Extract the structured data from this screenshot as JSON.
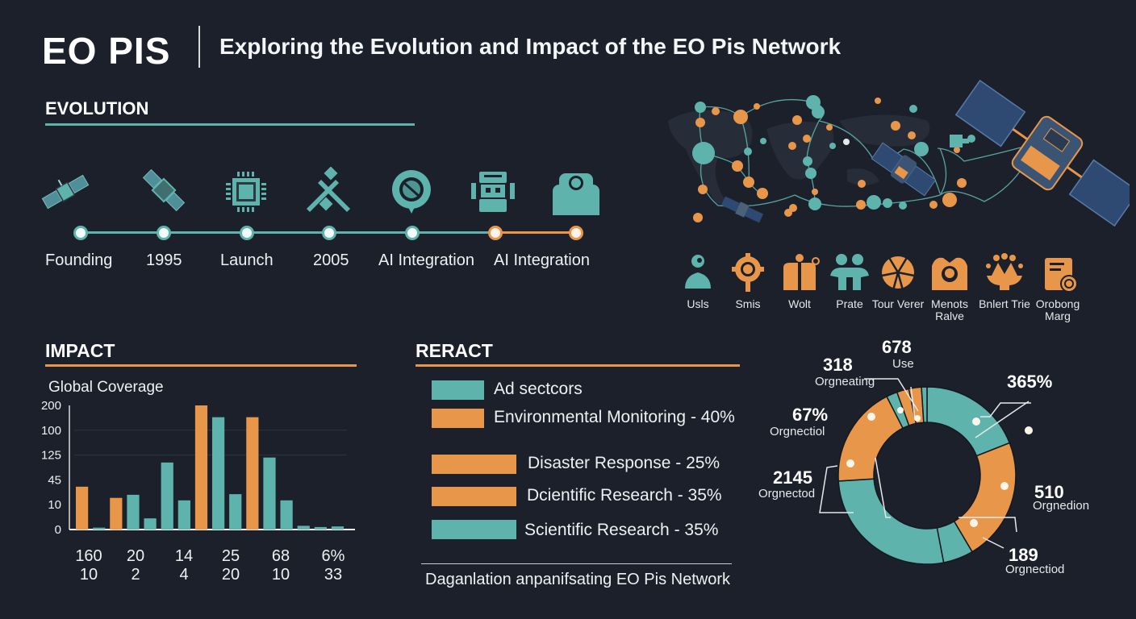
{
  "header": {
    "brand": "EO PIS",
    "subtitle": "Exploring the Evolution and Impact of the EO Pis Network"
  },
  "colors": {
    "background": "#1b202b",
    "teal": "#5fb3ad",
    "orange": "#e8974a",
    "text": "#f2f4f5"
  },
  "evolution": {
    "title": "EVOLUTION",
    "timeline": [
      {
        "label": "Founding",
        "icon": "satellite-icon",
        "status": "teal"
      },
      {
        "label": "1995",
        "icon": "satellite-icon",
        "status": "teal"
      },
      {
        "label": "Launch",
        "icon": "chip-icon",
        "status": "teal"
      },
      {
        "label": "2005",
        "icon": "crossed-tools-icon",
        "status": "teal"
      },
      {
        "label": "AI Integration",
        "icon": "map-pin-icon",
        "status": "teal"
      },
      {
        "label": "AI Integration",
        "icon": "robot-icon",
        "status": "orange"
      },
      {
        "label": "",
        "icon": "person-silhouette-icon",
        "status": "orange"
      }
    ]
  },
  "network_illustration": {
    "description": "world-map network with satellites",
    "icon": "satellite-network-icon"
  },
  "roles": [
    {
      "label": "Usls",
      "icon": "person-icon",
      "color": "teal"
    },
    {
      "label": "Smis",
      "icon": "gear-icon",
      "color": "orange"
    },
    {
      "label": "Wolt",
      "icon": "building-icon",
      "color": "orange"
    },
    {
      "label": "Prate",
      "icon": "group-icon",
      "color": "teal"
    },
    {
      "label": "Tour Verer",
      "icon": "star-burst-icon",
      "color": "orange"
    },
    {
      "label": "Menots Ralve",
      "icon": "team-icon",
      "color": "orange"
    },
    {
      "label": "Bnlert Trie",
      "icon": "crowd-icon",
      "color": "orange"
    },
    {
      "label": "Orobong Marg",
      "icon": "document-badge-icon",
      "color": "orange"
    }
  ],
  "impact": {
    "title": "IMPACT"
  },
  "reract": {
    "title": "RERACT",
    "legend": [
      {
        "label": "Ad sectcors",
        "color": "teal"
      },
      {
        "label": "Environmental Monitoring - 40%",
        "color": "orange"
      },
      {
        "label": "Disaster Response - 25%",
        "color": "orange"
      },
      {
        "label": "Dcientific Research - 35%",
        "color": "orange"
      },
      {
        "label": "Scientific Research - 35%",
        "color": "teal"
      }
    ],
    "footer": "Daganlation anpanifsating EO Pis Network"
  },
  "chart_data": [
    {
      "type": "bar",
      "title": "Global Coverage",
      "xlabel": "",
      "ylabel": "",
      "y_tick_labels": [
        "200",
        "100",
        "125",
        "45",
        "10",
        "0"
      ],
      "ylim": [
        0,
        200
      ],
      "grid": true,
      "x_label_rows": [
        [
          "160",
          "20",
          "14",
          "25",
          "68",
          "6%"
        ],
        [
          "10",
          "2",
          "4",
          "20",
          "10",
          "33"
        ]
      ],
      "bars": [
        {
          "value": 69,
          "color": "orange"
        },
        {
          "value": 3,
          "color": "teal"
        },
        {
          "value": 51,
          "color": "orange"
        },
        {
          "value": 56,
          "color": "teal"
        },
        {
          "value": 18,
          "color": "teal"
        },
        {
          "value": 108,
          "color": "teal"
        },
        {
          "value": 47,
          "color": "teal"
        },
        {
          "value": 200,
          "color": "orange"
        },
        {
          "value": 181,
          "color": "teal"
        },
        {
          "value": 57,
          "color": "teal"
        },
        {
          "value": 181,
          "color": "orange"
        },
        {
          "value": 116,
          "color": "teal"
        },
        {
          "value": 47,
          "color": "teal"
        },
        {
          "value": 6,
          "color": "teal"
        },
        {
          "value": 4,
          "color": "teal"
        },
        {
          "value": 5,
          "color": "teal"
        }
      ]
    },
    {
      "type": "pie",
      "variant": "donut",
      "slices": [
        {
          "percent": 19,
          "color": "teal",
          "value": "365%",
          "sublabel": ""
        },
        {
          "percent": 22.5,
          "color": "orange",
          "value": "510",
          "sublabel": "Orgnedion"
        },
        {
          "percent": 5.5,
          "color": "teal",
          "value": "",
          "sublabel": ""
        },
        {
          "percent": 27,
          "color": "teal",
          "value": "",
          "sublabel": ""
        },
        {
          "percent": 18.5,
          "color": "orange",
          "value": "67%",
          "sublabel": "Orgnectiol"
        },
        {
          "percent": 2,
          "color": "teal",
          "value": "318",
          "sublabel": "Orgneating"
        },
        {
          "percent": 2.2,
          "color": "orange",
          "value": "",
          "sublabel": ""
        },
        {
          "percent": 2.3,
          "color": "orange",
          "value": "678",
          "sublabel": "Use"
        },
        {
          "percent": 1,
          "color": "teal",
          "value": "",
          "sublabel": ""
        }
      ],
      "annotations": [
        {
          "value": "365%",
          "sublabel": ""
        },
        {
          "value": "510",
          "sublabel": "Orgnedion"
        },
        {
          "value": "189",
          "sublabel": "Orgnectiod"
        },
        {
          "value": "2145",
          "sublabel": "Orgnectod"
        },
        {
          "value": "67%",
          "sublabel": "Orgnectiol"
        },
        {
          "value": "318",
          "sublabel": "Orgneating"
        },
        {
          "value": "678",
          "sublabel": "Use"
        }
      ]
    }
  ]
}
